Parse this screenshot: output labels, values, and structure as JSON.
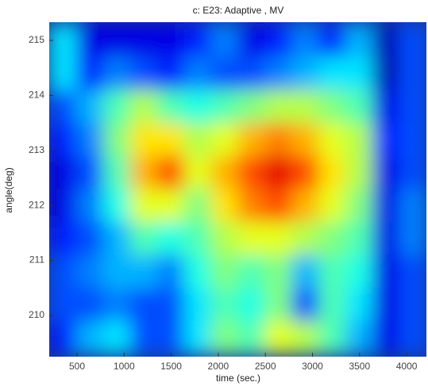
{
  "chart_data": {
    "type": "heatmap",
    "title": "c: E23: Adaptive , MV",
    "x_label": "time (sec.)",
    "y_label": "angle(deg)",
    "colormap": "jet",
    "x": [
      348,
      634,
      920,
      1206,
      1492,
      1778,
      2064,
      2350,
      2636,
      2922,
      3208,
      3494,
      3780,
      4066
    ],
    "y": [
      215.0,
      214.4,
      213.8,
      213.2,
      212.6,
      212.0,
      211.4,
      210.8,
      210.2,
      209.6
    ],
    "z": [
      [
        0.35,
        0.1,
        0.1,
        0.1,
        0.1,
        0.15,
        0.25,
        0.1,
        0.15,
        0.25,
        0.15,
        0.3,
        0.05,
        0.2
      ],
      [
        0.35,
        0.15,
        0.25,
        0.2,
        0.15,
        0.25,
        0.2,
        0.2,
        0.25,
        0.3,
        0.35,
        0.35,
        0.05,
        0.2
      ],
      [
        0.2,
        0.3,
        0.45,
        0.55,
        0.45,
        0.4,
        0.45,
        0.5,
        0.55,
        0.55,
        0.5,
        0.45,
        0.1,
        0.2
      ],
      [
        0.15,
        0.25,
        0.5,
        0.65,
        0.65,
        0.55,
        0.6,
        0.7,
        0.75,
        0.7,
        0.6,
        0.55,
        0.15,
        0.2
      ],
      [
        0.1,
        0.2,
        0.45,
        0.7,
        0.8,
        0.6,
        0.7,
        0.8,
        0.9,
        0.8,
        0.65,
        0.55,
        0.1,
        0.2
      ],
      [
        0.1,
        0.25,
        0.4,
        0.6,
        0.6,
        0.5,
        0.65,
        0.75,
        0.8,
        0.7,
        0.6,
        0.5,
        0.1,
        0.25
      ],
      [
        0.15,
        0.2,
        0.3,
        0.45,
        0.4,
        0.45,
        0.55,
        0.6,
        0.6,
        0.55,
        0.5,
        0.45,
        0.1,
        0.25
      ],
      [
        0.2,
        0.25,
        0.3,
        0.3,
        0.25,
        0.4,
        0.5,
        0.45,
        0.5,
        0.3,
        0.45,
        0.4,
        0.1,
        0.2
      ],
      [
        0.2,
        0.2,
        0.25,
        0.2,
        0.2,
        0.35,
        0.45,
        0.4,
        0.5,
        0.2,
        0.45,
        0.35,
        0.1,
        0.2
      ],
      [
        0.15,
        0.3,
        0.35,
        0.2,
        0.2,
        0.35,
        0.5,
        0.45,
        0.6,
        0.55,
        0.45,
        0.3,
        0.1,
        0.2
      ]
    ],
    "xlim": [
      205,
      4210
    ],
    "ylim": [
      209.25,
      215.33
    ],
    "xticks": [
      500,
      1000,
      1500,
      2000,
      2500,
      3000,
      3500,
      4000
    ],
    "yticks": [
      210,
      211,
      212,
      213,
      214,
      215
    ]
  }
}
